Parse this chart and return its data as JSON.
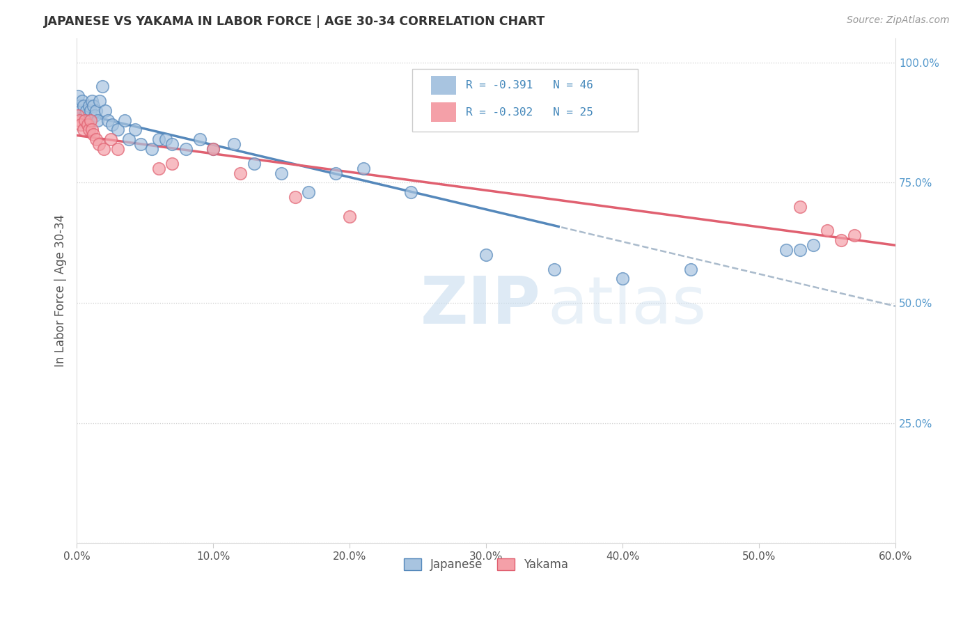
{
  "title": "JAPANESE VS YAKAMA IN LABOR FORCE | AGE 30-34 CORRELATION CHART",
  "source": "Source: ZipAtlas.com",
  "ylabel": "In Labor Force | Age 30-34",
  "xmin": 0.0,
  "xmax": 0.6,
  "ymin": 0.0,
  "ymax": 1.05,
  "xticks": [
    0.0,
    0.1,
    0.2,
    0.3,
    0.4,
    0.5,
    0.6
  ],
  "yticks_right": [
    0.0,
    0.25,
    0.5,
    0.75,
    1.0
  ],
  "ytick_labels_right": [
    "",
    "25.0%",
    "50.0%",
    "75.0%",
    "100.0%"
  ],
  "xtick_labels": [
    "0.0%",
    "10.0%",
    "20.0%",
    "30.0%",
    "40.0%",
    "50.0%",
    "60.0%"
  ],
  "japanese_R": -0.391,
  "japanese_N": 46,
  "yakama_R": -0.302,
  "yakama_N": 25,
  "japanese_color": "#a8c4e0",
  "yakama_color": "#f4a0a8",
  "japanese_line_color": "#5588bb",
  "yakama_line_color": "#e06070",
  "trend_line_color": "#aabbcc",
  "japanese_x": [
    0.001,
    0.002,
    0.003,
    0.004,
    0.005,
    0.006,
    0.007,
    0.008,
    0.009,
    0.01,
    0.011,
    0.012,
    0.013,
    0.014,
    0.015,
    0.017,
    0.019,
    0.021,
    0.023,
    0.026,
    0.03,
    0.035,
    0.038,
    0.043,
    0.047,
    0.055,
    0.06,
    0.065,
    0.07,
    0.08,
    0.09,
    0.1,
    0.115,
    0.13,
    0.15,
    0.17,
    0.19,
    0.21,
    0.245,
    0.3,
    0.35,
    0.4,
    0.45,
    0.52,
    0.53,
    0.54
  ],
  "japanese_y": [
    0.93,
    0.91,
    0.9,
    0.92,
    0.91,
    0.89,
    0.9,
    0.88,
    0.91,
    0.9,
    0.92,
    0.91,
    0.89,
    0.9,
    0.88,
    0.92,
    0.95,
    0.9,
    0.88,
    0.87,
    0.86,
    0.88,
    0.84,
    0.86,
    0.83,
    0.82,
    0.84,
    0.84,
    0.83,
    0.82,
    0.84,
    0.82,
    0.83,
    0.79,
    0.77,
    0.73,
    0.77,
    0.78,
    0.73,
    0.6,
    0.57,
    0.55,
    0.57,
    0.61,
    0.61,
    0.62
  ],
  "yakama_x": [
    0.001,
    0.002,
    0.003,
    0.005,
    0.006,
    0.008,
    0.009,
    0.01,
    0.011,
    0.012,
    0.014,
    0.016,
    0.02,
    0.025,
    0.03,
    0.06,
    0.07,
    0.1,
    0.12,
    0.16,
    0.2,
    0.53,
    0.55,
    0.56,
    0.57
  ],
  "yakama_y": [
    0.89,
    0.88,
    0.87,
    0.86,
    0.88,
    0.87,
    0.86,
    0.88,
    0.86,
    0.85,
    0.84,
    0.83,
    0.82,
    0.84,
    0.82,
    0.78,
    0.79,
    0.82,
    0.77,
    0.72,
    0.68,
    0.7,
    0.65,
    0.63,
    0.64
  ],
  "legend_box_color": "#ffffff",
  "legend_edge_color": "#cccccc"
}
